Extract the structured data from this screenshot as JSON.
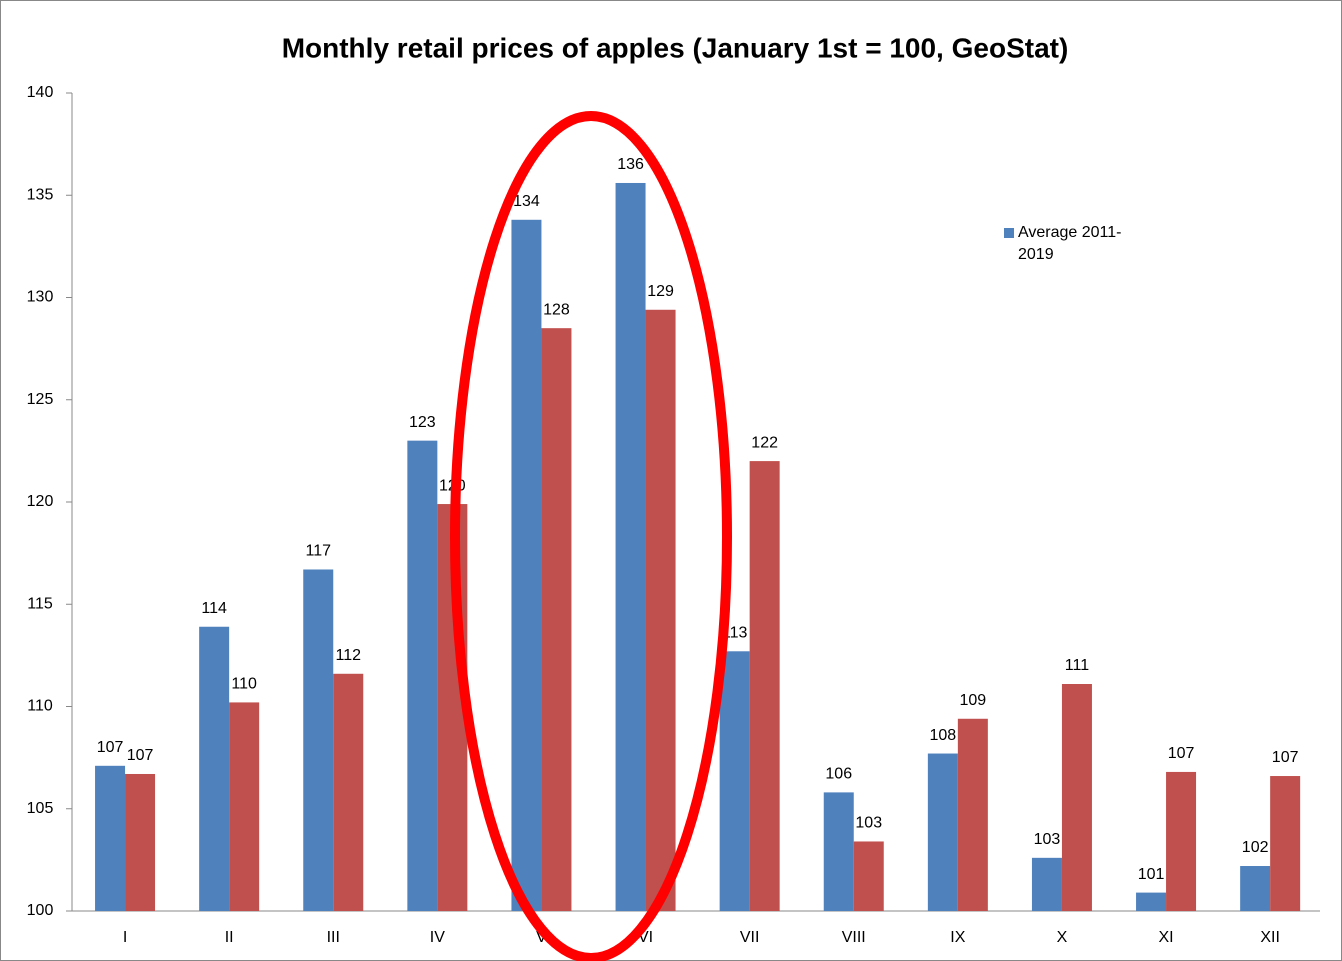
{
  "chart_data": {
    "type": "bar",
    "title": "Monthly retail prices of apples (January 1st = 100, GeoStat)",
    "categories": [
      "I",
      "II",
      "III",
      "IV",
      "V",
      "VI",
      "VII",
      "VIII",
      "IX",
      "X",
      "XI",
      "XII"
    ],
    "series": [
      {
        "name": "Average 2011-2019",
        "color": "#4f81bd",
        "values": [
          107.1,
          113.9,
          116.7,
          123.0,
          133.8,
          135.6,
          112.7,
          105.8,
          107.7,
          102.6,
          100.9,
          102.2
        ],
        "value_labels": [
          "107",
          "114",
          "117",
          "123",
          "134",
          "136",
          "113",
          "106",
          "108",
          "103",
          "101",
          "102"
        ]
      },
      {
        "color": "#c0504d",
        "values": [
          106.7,
          110.2,
          111.6,
          119.9,
          128.5,
          129.4,
          122.0,
          103.4,
          109.4,
          111.1,
          106.8,
          106.6
        ],
        "value_labels": [
          "107",
          "110",
          "112",
          "120",
          "128",
          "129",
          "122",
          "103",
          "109",
          "111",
          "107",
          "107"
        ]
      }
    ],
    "ylim": [
      100,
      140
    ],
    "yticks": [
      100,
      105,
      110,
      115,
      120,
      125,
      130,
      135,
      140
    ],
    "legend": "right"
  }
}
